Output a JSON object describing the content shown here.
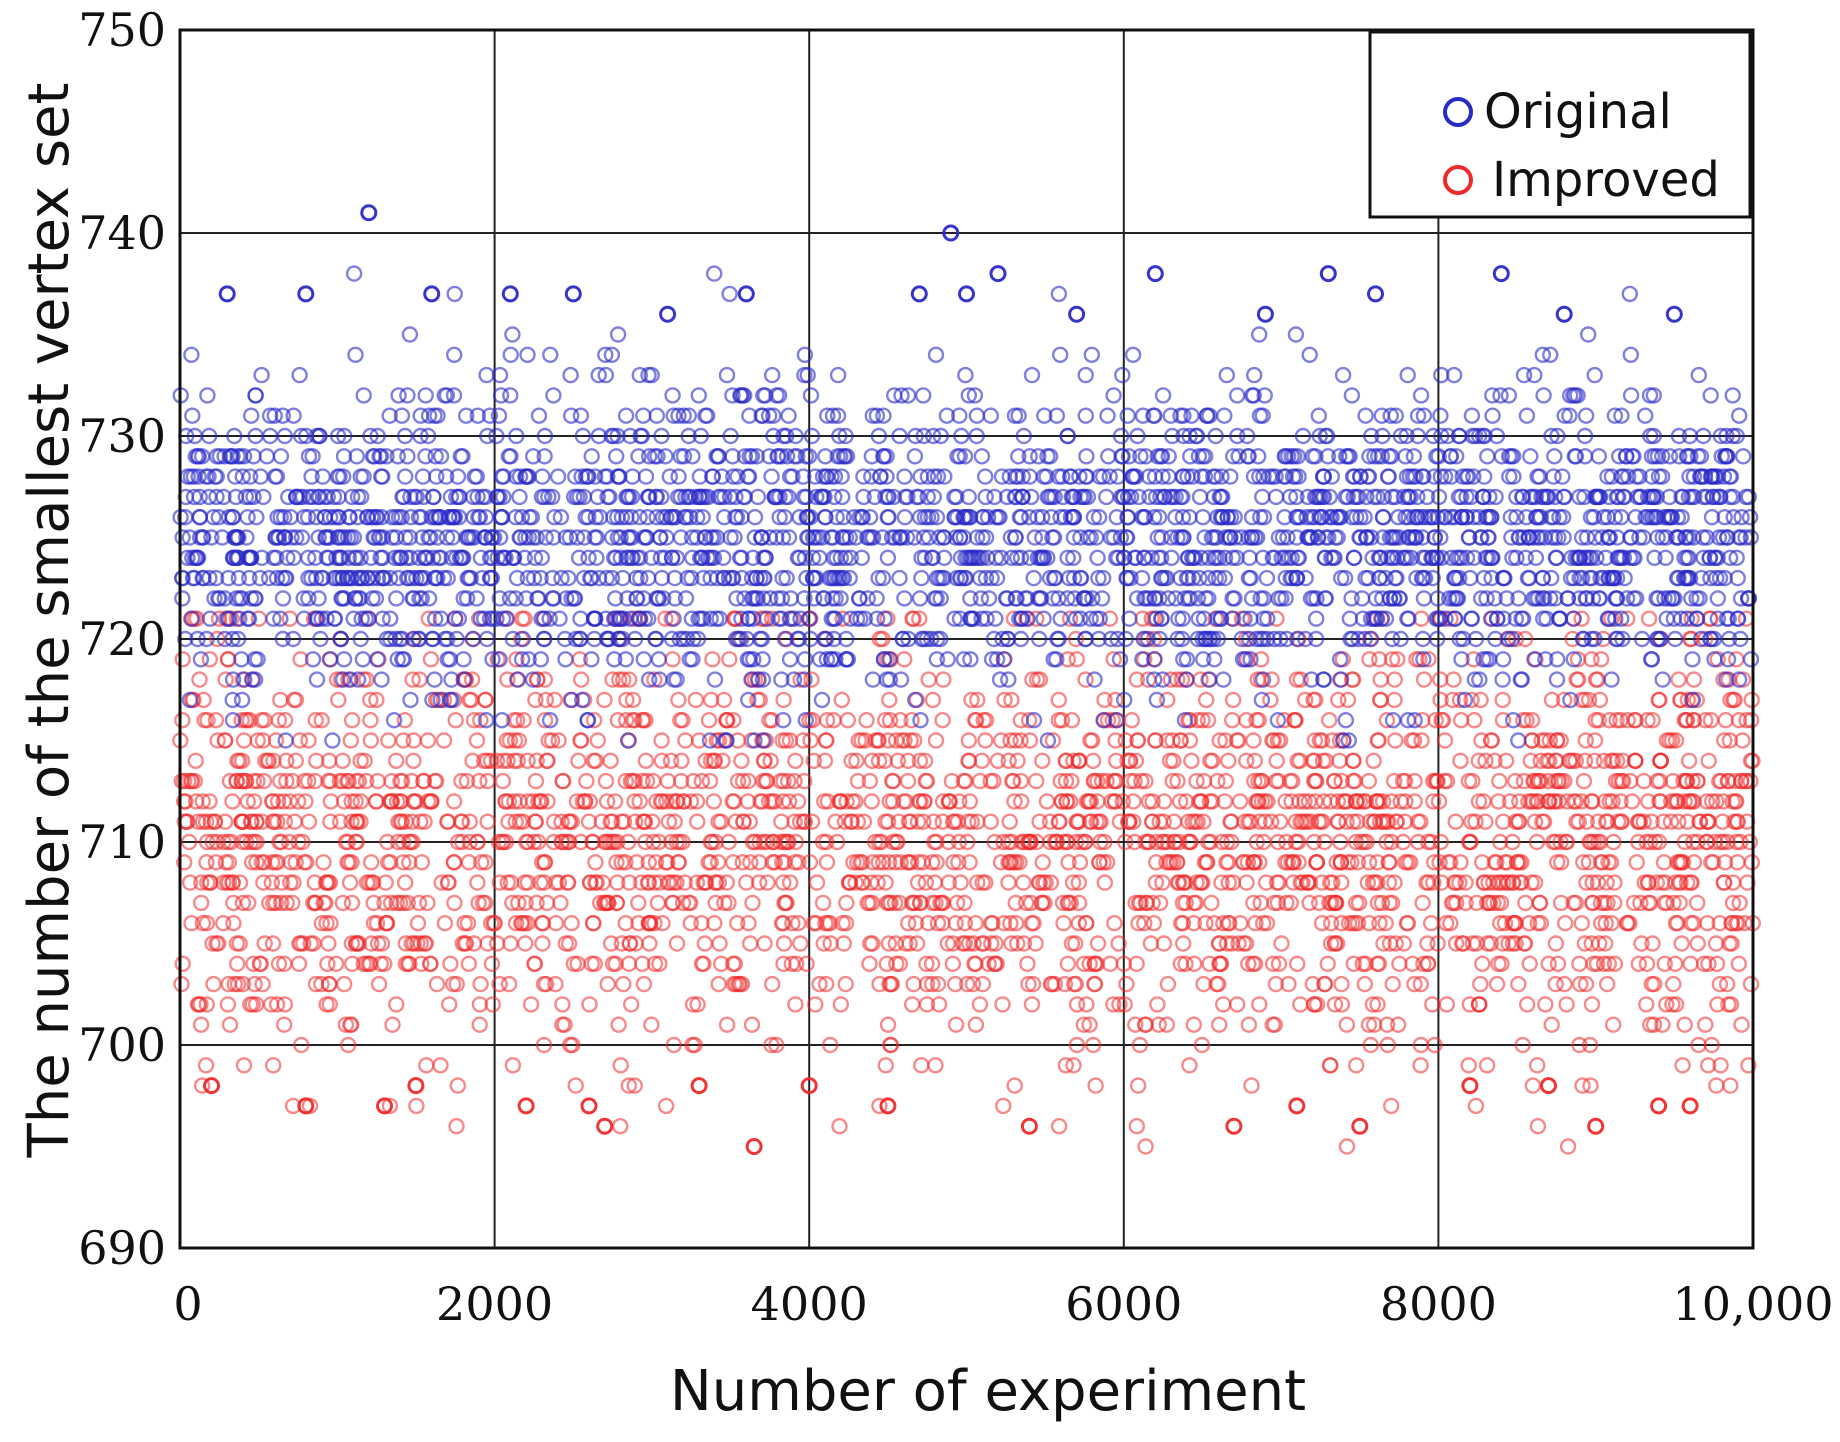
{
  "chart_data": {
    "type": "scatter",
    "title": "",
    "xlabel": "Number of experiment",
    "ylabel": "The number of the smallest vertex set",
    "xlim": [
      0,
      10000
    ],
    "ylim": [
      690,
      750
    ],
    "x_ticks": [
      {
        "value": 0,
        "label": "0"
      },
      {
        "value": 2000,
        "label": "2000"
      },
      {
        "value": 4000,
        "label": "4000"
      },
      {
        "value": 6000,
        "label": "6000"
      },
      {
        "value": 8000,
        "label": "8000"
      },
      {
        "value": 10000,
        "label": "10,000"
      }
    ],
    "y_ticks": [
      {
        "value": 690,
        "label": "690"
      },
      {
        "value": 700,
        "label": "700"
      },
      {
        "value": 710,
        "label": "710"
      },
      {
        "value": 720,
        "label": "720"
      },
      {
        "value": 730,
        "label": "730"
      },
      {
        "value": 740,
        "label": "740"
      },
      {
        "value": 750,
        "label": "750"
      }
    ],
    "grid": true,
    "legend_position": "top-right",
    "series": [
      {
        "name": "Original",
        "color": "#2a2ac8",
        "marker": "open-circle",
        "n_points": 10000,
        "x_range": [
          0,
          10000
        ],
        "dense_band": [
          720,
          730
        ],
        "value_range": [
          715,
          741
        ],
        "outliers": [
          {
            "x": 1200,
            "y": 741
          },
          {
            "x": 4900,
            "y": 740
          },
          {
            "x": 5200,
            "y": 738
          },
          {
            "x": 6200,
            "y": 738
          },
          {
            "x": 7300,
            "y": 738
          },
          {
            "x": 8400,
            "y": 738
          },
          {
            "x": 300,
            "y": 737
          },
          {
            "x": 800,
            "y": 737
          },
          {
            "x": 1600,
            "y": 737
          },
          {
            "x": 2100,
            "y": 737
          },
          {
            "x": 2500,
            "y": 737
          },
          {
            "x": 3600,
            "y": 737
          },
          {
            "x": 4700,
            "y": 737
          },
          {
            "x": 5000,
            "y": 737
          },
          {
            "x": 7600,
            "y": 737
          },
          {
            "x": 3100,
            "y": 736
          },
          {
            "x": 5700,
            "y": 736
          },
          {
            "x": 6900,
            "y": 736
          },
          {
            "x": 8800,
            "y": 736
          },
          {
            "x": 9500,
            "y": 736
          }
        ]
      },
      {
        "name": "Improved",
        "color": "#ee2a2a",
        "marker": "open-circle",
        "n_points": 10000,
        "x_range": [
          0,
          10000
        ],
        "dense_band": [
          703,
          717
        ],
        "value_range": [
          695,
          721
        ],
        "outliers": [
          {
            "x": 3650,
            "y": 695
          },
          {
            "x": 2700,
            "y": 696
          },
          {
            "x": 5400,
            "y": 696
          },
          {
            "x": 6700,
            "y": 696
          },
          {
            "x": 7500,
            "y": 696
          },
          {
            "x": 9000,
            "y": 696
          },
          {
            "x": 800,
            "y": 697
          },
          {
            "x": 1300,
            "y": 697
          },
          {
            "x": 2200,
            "y": 697
          },
          {
            "x": 2600,
            "y": 697
          },
          {
            "x": 4500,
            "y": 697
          },
          {
            "x": 7100,
            "y": 697
          },
          {
            "x": 9400,
            "y": 697
          },
          {
            "x": 9600,
            "y": 697
          },
          {
            "x": 200,
            "y": 698
          },
          {
            "x": 1500,
            "y": 698
          },
          {
            "x": 3300,
            "y": 698
          },
          {
            "x": 4000,
            "y": 698
          },
          {
            "x": 8200,
            "y": 698
          },
          {
            "x": 8700,
            "y": 698
          }
        ]
      }
    ]
  }
}
